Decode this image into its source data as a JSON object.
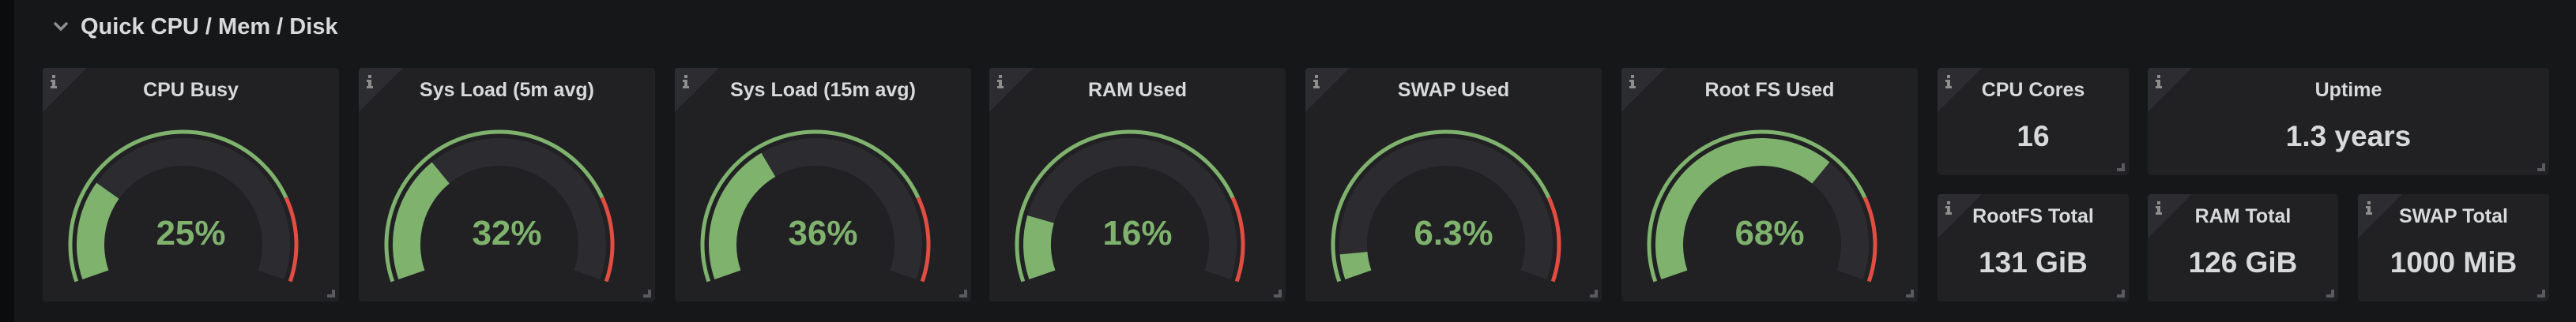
{
  "row": {
    "title": "Quick CPU / Mem / Disk",
    "collapse_icon": "chevron-down-icon"
  },
  "colors": {
    "background": "#161719",
    "panel": "#212124",
    "gauge_ok": "#7eb26d",
    "gauge_threshold": "#e24d42",
    "gauge_track": "#2c2c30",
    "text": "#d8d9da"
  },
  "gauges": [
    {
      "title": "CPU Busy",
      "value": "25%",
      "percent": 25,
      "threshold_percent": 80
    },
    {
      "title": "Sys Load (5m avg)",
      "value": "32%",
      "percent": 32,
      "threshold_percent": 80
    },
    {
      "title": "Sys Load (15m avg)",
      "value": "36%",
      "percent": 36,
      "threshold_percent": 80
    },
    {
      "title": "RAM Used",
      "value": "16%",
      "percent": 16,
      "threshold_percent": 80
    },
    {
      "title": "SWAP Used",
      "value": "6.3%",
      "percent": 6.3,
      "threshold_percent": 80
    },
    {
      "title": "Root FS Used",
      "value": "68%",
      "percent": 68,
      "threshold_percent": 80
    }
  ],
  "stats": {
    "cpu_cores": {
      "title": "CPU Cores",
      "value": "16"
    },
    "uptime": {
      "title": "Uptime",
      "value": "1.3 years"
    },
    "rootfs_total": {
      "title": "RootFS Total",
      "value": "131 GiB"
    },
    "ram_total": {
      "title": "RAM Total",
      "value": "126 GiB"
    },
    "swap_total": {
      "title": "SWAP Total",
      "value": "1000 MiB"
    }
  },
  "chart_data": {
    "type": "gauge",
    "categories": [
      "CPU Busy",
      "Sys Load (5m avg)",
      "Sys Load (15m avg)",
      "RAM Used",
      "SWAP Used",
      "Root FS Used"
    ],
    "values": [
      25,
      32,
      36,
      16,
      6.3,
      68
    ],
    "unit": "%",
    "range": [
      0,
      100
    ],
    "thresholds": [
      {
        "from": 0,
        "color": "#7eb26d"
      },
      {
        "from": 80,
        "color": "#e24d42"
      }
    ],
    "stats": [
      {
        "label": "CPU Cores",
        "value": "16"
      },
      {
        "label": "Uptime",
        "value": "1.3 years"
      },
      {
        "label": "RootFS Total",
        "value": "131 GiB"
      },
      {
        "label": "RAM Total",
        "value": "126 GiB"
      },
      {
        "label": "SWAP Total",
        "value": "1000 MiB"
      }
    ]
  }
}
